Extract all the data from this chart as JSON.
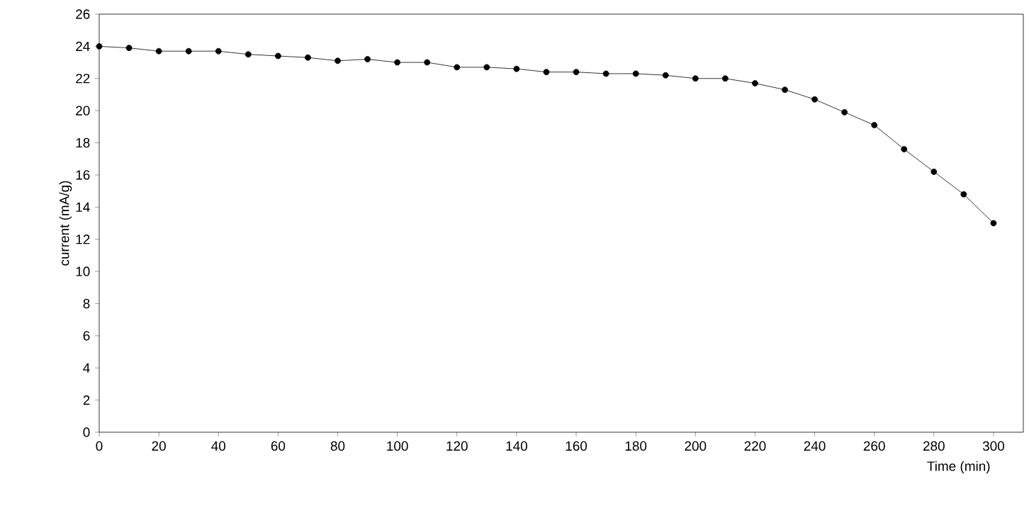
{
  "chart_data": {
    "type": "line",
    "xlabel": "Time (min)",
    "ylabel": "current (mA/g)",
    "x": [
      0,
      10,
      20,
      30,
      40,
      50,
      60,
      70,
      80,
      90,
      100,
      110,
      120,
      130,
      140,
      150,
      160,
      170,
      180,
      190,
      200,
      210,
      220,
      230,
      240,
      250,
      260,
      270,
      280,
      290,
      300
    ],
    "series": [
      {
        "color": "#000000",
        "values": [
          24.0,
          23.9,
          23.7,
          23.7,
          23.7,
          23.5,
          23.4,
          23.3,
          23.1,
          23.2,
          23.0,
          23.0,
          22.7,
          22.7,
          22.6,
          22.4,
          22.4,
          22.3,
          22.3,
          22.2,
          22.0,
          22.0,
          21.7,
          21.3,
          20.7,
          19.9,
          19.1,
          17.6,
          16.2,
          14.8,
          13.0
        ]
      }
    ],
    "xlim": [
      0,
      310
    ],
    "xticks": [
      0,
      20,
      40,
      60,
      80,
      100,
      120,
      140,
      160,
      180,
      200,
      220,
      240,
      260,
      280,
      300
    ],
    "ylim": [
      0,
      26
    ],
    "yticks": [
      0,
      2,
      4,
      6,
      8,
      10,
      12,
      14,
      16,
      18,
      20,
      22,
      24,
      26
    ],
    "grid": false,
    "marker": "circle",
    "line_style": "solid"
  }
}
